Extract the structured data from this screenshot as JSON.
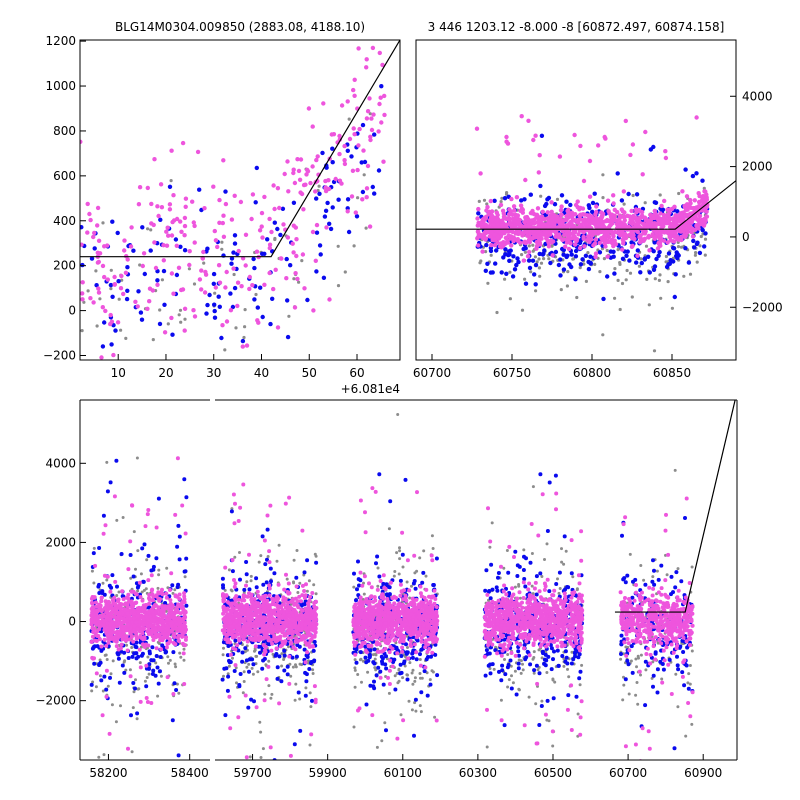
{
  "figure": {
    "title_left": "BLG14M0304.009850 (2883.08, 4188.10)",
    "title_right": "3 446 1203.12 -8.000 -8 [60872.497, 60874.158]"
  },
  "colors": {
    "magenta": "#ee55dd",
    "blue": "#0a0aee",
    "gray": "#8c8c8c",
    "model": "#000000"
  },
  "chart_data": [
    {
      "id": "zoom-left",
      "type": "scatter",
      "title": "BLG14M0304.009850 (2883.08, 4188.10)",
      "xlim": [
        2,
        69
      ],
      "ylim": [
        -220,
        1205
      ],
      "xticks": [
        10,
        20,
        30,
        40,
        50,
        60
      ],
      "yticks": [
        -200,
        0,
        200,
        400,
        600,
        800,
        1000,
        1200
      ],
      "x_offset_label": "+6.081e4",
      "model_line": {
        "x": [
          2,
          42,
          69
        ],
        "y": [
          240,
          240,
          1205
        ]
      },
      "series": [
        {
          "name": "magenta",
          "color": "#ee55dd",
          "n": 300,
          "x_range": [
            2,
            66
          ],
          "y_base": 240,
          "y_spread": 200,
          "trend_start": 42,
          "trend_end": 69,
          "y_peak": 1205
        },
        {
          "name": "blue",
          "color": "#0a0aee",
          "n": 150,
          "x_range": [
            2,
            66
          ],
          "y_base": 200,
          "y_spread": 160,
          "trend_start": 42,
          "trend_end": 69,
          "y_peak": 1000
        },
        {
          "name": "gray",
          "color": "#8c8c8c",
          "n": 70,
          "x_range": [
            2,
            66
          ],
          "y_base": 100,
          "y_spread": 180,
          "trend_start": 42,
          "trend_end": 69,
          "y_peak": 900
        }
      ]
    },
    {
      "id": "zoom-right",
      "type": "scatter",
      "title": "3 446 1203.12 -8.000 -8 [60872.497, 60874.158]",
      "xlim": [
        60690,
        60890
      ],
      "ylim": [
        -3500,
        5600
      ],
      "xticks": [
        60700,
        60750,
        60800,
        60850
      ],
      "yticks": [
        -2000,
        0,
        2000,
        4000
      ],
      "y_axis_side": "right",
      "model_line": {
        "x": [
          60690,
          60852,
          60890
        ],
        "y": [
          220,
          220,
          1600
        ]
      },
      "data_x_range": [
        60728,
        60872
      ],
      "series": [
        {
          "name": "gray",
          "color": "#8c8c8c",
          "n": 250,
          "y_base": -250,
          "y_spread": 700
        },
        {
          "name": "blue",
          "color": "#0a0aee",
          "n": 400,
          "y_base": 0,
          "y_spread": 550
        },
        {
          "name": "magenta",
          "color": "#ee55dd",
          "n": 1200,
          "y_base": 260,
          "y_spread": 260
        }
      ]
    },
    {
      "id": "full-lightcurve",
      "type": "scatter",
      "segments": [
        {
          "xlim": [
            58130,
            58450
          ],
          "xticks": [
            58200,
            58400
          ],
          "data_x_range": [
            58158,
            58392
          ]
        },
        {
          "xlim": [
            59600,
            60990
          ],
          "xticks": [
            59700,
            59900,
            60100,
            60300,
            60500,
            60700,
            60900
          ]
        }
      ],
      "ylim": [
        -3500,
        5600
      ],
      "yticks": [
        -2000,
        0,
        2000,
        4000
      ],
      "model_line": {
        "x": [
          60665,
          60852,
          60985
        ],
        "y": [
          240,
          240,
          5600
        ]
      },
      "seasons": [
        {
          "x_range": [
            59620,
            59870
          ]
        },
        {
          "x_range": [
            59968,
            60192
          ]
        },
        {
          "x_range": [
            60318,
            60578
          ]
        },
        {
          "x_range": [
            60680,
            60872
          ]
        }
      ],
      "series": [
        {
          "name": "gray",
          "color": "#8c8c8c",
          "y_base": -300,
          "y_spread": 900
        },
        {
          "name": "blue",
          "color": "#0a0aee",
          "y_base": -100,
          "y_spread": 700
        },
        {
          "name": "magenta",
          "color": "#ee55dd",
          "y_base": 40,
          "y_spread": 320
        }
      ]
    }
  ]
}
